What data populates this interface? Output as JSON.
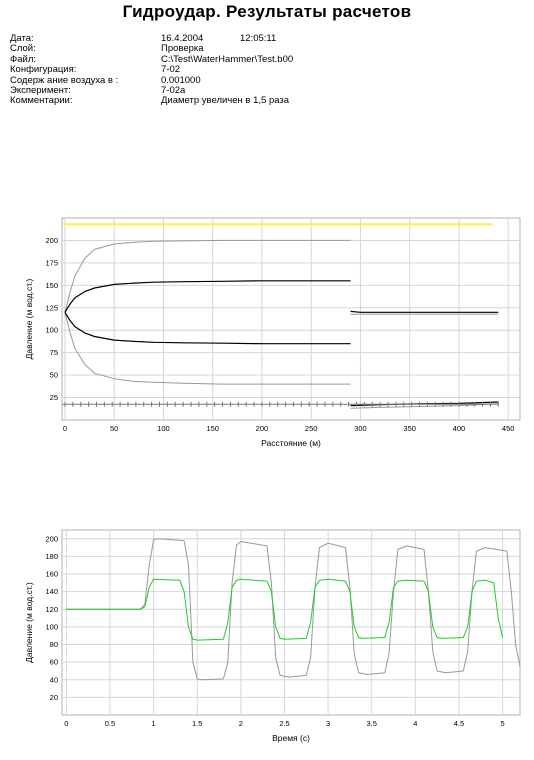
{
  "header": {
    "title": "Гидроудар. Результаты расчетов",
    "fields": [
      {
        "label": "Дата:",
        "value": "16.4.2004",
        "time": "12:05:11"
      },
      {
        "label": "Слой:",
        "value": "Проверка"
      },
      {
        "label": "Файл:",
        "value": "C:\\Test\\WaterHammer\\Test.b00"
      },
      {
        "label": "Конфигурация:",
        "value": "7-02"
      },
      {
        "label": "Содерж ание воздуха в :",
        "value": "0.001000"
      },
      {
        "label": "Эксперимент:",
        "value": "7-02a"
      },
      {
        "label": "Комментарии:",
        "value": "Диаметр увеличен в 1,5 раза"
      }
    ]
  },
  "chart_data": [
    {
      "type": "line",
      "xlabel": "Расстояние (м)",
      "ylabel": "Давление (м вод.ст.)",
      "xlim": [
        -3,
        462
      ],
      "ylim": [
        0,
        225
      ],
      "xticks": [
        0,
        50,
        100,
        150,
        200,
        250,
        300,
        350,
        400,
        450
      ],
      "yticks": [
        25,
        50,
        75,
        100,
        125,
        150,
        175,
        200
      ],
      "grid": true,
      "series": [
        {
          "color": "#ffee44",
          "x": [
            -3,
            434
          ],
          "y": [
            218,
            218
          ]
        },
        {
          "color": "#999999",
          "x": [
            0,
            5,
            10,
            20,
            30,
            50,
            70,
            90,
            120,
            160,
            200,
            240,
            290
          ],
          "y": [
            120,
            142,
            160,
            180,
            190,
            196,
            198,
            199,
            199.5,
            200,
            200,
            200,
            200
          ]
        },
        {
          "color": "#999999",
          "x": [
            0,
            5,
            10,
            20,
            30,
            50,
            70,
            90,
            120,
            160,
            200,
            240,
            290
          ],
          "y": [
            120,
            98,
            80,
            62,
            52,
            46,
            43,
            42,
            41,
            40,
            40,
            40,
            40
          ]
        },
        {
          "color": "#000000",
          "x": [
            0,
            5,
            10,
            20,
            30,
            50,
            70,
            90,
            120,
            160,
            200,
            240,
            290
          ],
          "y": [
            120,
            129,
            136,
            143,
            147,
            151,
            152.5,
            153.5,
            154,
            154.5,
            155,
            155,
            155
          ]
        },
        {
          "color": "#000000",
          "x": [
            0,
            5,
            10,
            20,
            30,
            50,
            70,
            90,
            120,
            160,
            200,
            240,
            290
          ],
          "y": [
            120,
            111,
            104,
            97,
            93,
            89,
            87.5,
            86.5,
            86,
            85.5,
            85,
            85,
            85
          ]
        },
        {
          "color": "#000000",
          "x": [
            290,
            300,
            440
          ],
          "y": [
            121,
            120,
            120
          ]
        },
        {
          "color": "#999999",
          "x": [
            290,
            300,
            440
          ],
          "y": [
            117.5,
            118,
            118
          ]
        },
        {
          "color": "#000000",
          "x": [
            290,
            320,
            360,
            400,
            440
          ],
          "y": [
            16,
            17,
            18,
            18.5,
            20
          ]
        },
        {
          "color": "#999999",
          "x": [
            290,
            320,
            360,
            400,
            440
          ],
          "y": [
            13,
            14,
            15,
            16,
            18
          ]
        },
        {
          "color": "#777777",
          "x": [
            -3,
            440
          ],
          "y": [
            17.5,
            17.5
          ]
        }
      ]
    },
    {
      "type": "line",
      "xlabel": "Время (с)",
      "ylabel": "Давление (м вод.ст.)",
      "xlim": [
        -0.05,
        5.2
      ],
      "ylim": [
        0,
        210
      ],
      "xticks": [
        0,
        0.5,
        1,
        1.5,
        2,
        2.5,
        3,
        3.5,
        4,
        4.5,
        5
      ],
      "yticks": [
        20,
        40,
        60,
        80,
        100,
        120,
        140,
        160,
        180,
        200
      ],
      "grid": true,
      "series": [
        {
          "color": "#999999",
          "x": [
            0,
            0.85,
            0.9,
            0.95,
            1.0,
            1.05,
            1.35,
            1.4,
            1.45,
            1.5,
            1.55,
            1.8,
            1.85,
            1.9,
            1.95,
            2.0,
            2.3,
            2.35,
            2.4,
            2.45,
            2.55,
            2.75,
            2.8,
            2.85,
            2.9,
            3.0,
            3.2,
            3.25,
            3.3,
            3.35,
            3.45,
            3.65,
            3.7,
            3.75,
            3.8,
            3.9,
            4.1,
            4.15,
            4.2,
            4.25,
            4.35,
            4.55,
            4.6,
            4.65,
            4.7,
            4.8,
            5.05,
            5.1,
            5.15,
            5.2
          ],
          "y": [
            120,
            120,
            126,
            170,
            199,
            200,
            198,
            170,
            60,
            41,
            40,
            41,
            60,
            150,
            193,
            197,
            192,
            150,
            65,
            45,
            43,
            45,
            65,
            145,
            190,
            195,
            190,
            145,
            70,
            48,
            46,
            48,
            70,
            140,
            188,
            192,
            188,
            140,
            72,
            50,
            48,
            50,
            72,
            140,
            186,
            190,
            186,
            140,
            80,
            55
          ]
        },
        {
          "color": "#22cc22",
          "x": [
            0,
            0.85,
            0.9,
            0.95,
            1.0,
            1.3,
            1.35,
            1.4,
            1.45,
            1.5,
            1.8,
            1.85,
            1.9,
            1.95,
            2.0,
            2.3,
            2.35,
            2.4,
            2.45,
            2.5,
            2.75,
            2.8,
            2.85,
            2.9,
            3.0,
            3.2,
            3.25,
            3.3,
            3.35,
            3.4,
            3.65,
            3.7,
            3.75,
            3.8,
            3.9,
            4.1,
            4.15,
            4.2,
            4.25,
            4.3,
            4.55,
            4.6,
            4.65,
            4.7,
            4.8,
            4.9,
            4.95,
            5.0
          ],
          "y": [
            120,
            120,
            123,
            145,
            154,
            153,
            140,
            100,
            86,
            85,
            86,
            105,
            145,
            153,
            154,
            152,
            140,
            100,
            87,
            86,
            87,
            105,
            145,
            153,
            154,
            152,
            140,
            100,
            88,
            87,
            88,
            105,
            145,
            152,
            153,
            152,
            140,
            100,
            88,
            87,
            88,
            100,
            140,
            152,
            153,
            150,
            110,
            88
          ]
        }
      ]
    }
  ]
}
